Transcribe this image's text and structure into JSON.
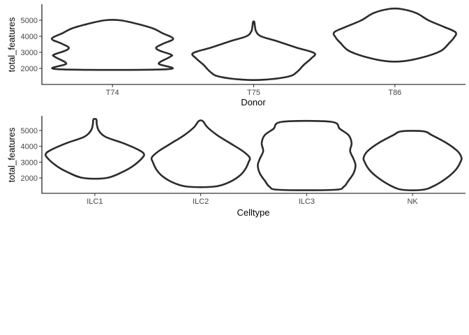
{
  "chart_data": [
    {
      "type": "violin",
      "xlabel": "Donor",
      "ylabel": "total_features",
      "ylim": [
        1050,
        5950
      ],
      "yticks": [
        2000,
        3000,
        4000,
        5000
      ],
      "categories": [
        "T74",
        "T75",
        "T86"
      ],
      "violins": [
        {
          "category": "T74",
          "profile": [
            [
              1950,
              0.9
            ],
            [
              2300,
              0.76
            ],
            [
              2700,
              0.94
            ],
            [
              2850,
              0.97
            ],
            [
              3100,
              0.78
            ],
            [
              3300,
              0.72
            ],
            [
              3550,
              0.84
            ],
            [
              3850,
              1.0
            ],
            [
              4200,
              0.82
            ],
            [
              4500,
              0.66
            ],
            [
              4800,
              0.38
            ],
            [
              5000,
              0.12
            ]
          ]
        },
        {
          "category": "T75",
          "profile": [
            [
              1300,
              0.19
            ],
            [
              1500,
              0.58
            ],
            [
              1800,
              0.72
            ],
            [
              2200,
              0.82
            ],
            [
              2600,
              0.94
            ],
            [
              2950,
              1.0
            ],
            [
              3300,
              0.7
            ],
            [
              3700,
              0.38
            ],
            [
              4000,
              0.12
            ],
            [
              4300,
              0.04
            ],
            [
              4650,
              0.02
            ],
            [
              4900,
              0.01
            ]
          ]
        },
        {
          "category": "T86",
          "profile": [
            [
              2450,
              0.14
            ],
            [
              2700,
              0.47
            ],
            [
              3100,
              0.76
            ],
            [
              3600,
              0.9
            ],
            [
              3900,
              0.97
            ],
            [
              4250,
              1.0
            ],
            [
              4600,
              0.8
            ],
            [
              5000,
              0.55
            ],
            [
              5450,
              0.35
            ],
            [
              5700,
              0.1
            ]
          ]
        }
      ]
    },
    {
      "type": "violin",
      "xlabel": "Celltype",
      "ylabel": "total_features",
      "ylim": [
        1050,
        5950
      ],
      "yticks": [
        2000,
        3000,
        4000,
        5000
      ],
      "categories": [
        "ILC1",
        "ILC2",
        "ILC3",
        "NK"
      ],
      "violins": [
        {
          "category": "ILC1",
          "profile": [
            [
              2000,
              0.24
            ],
            [
              2400,
              0.58
            ],
            [
              2800,
              0.8
            ],
            [
              3300,
              0.98
            ],
            [
              3550,
              1.0
            ],
            [
              3800,
              0.88
            ],
            [
              4200,
              0.58
            ],
            [
              4600,
              0.22
            ],
            [
              5000,
              0.08
            ],
            [
              5400,
              0.04
            ],
            [
              5700,
              0.03
            ]
          ]
        },
        {
          "category": "ILC2",
          "profile": [
            [
              1450,
              0.26
            ],
            [
              1700,
              0.56
            ],
            [
              2100,
              0.78
            ],
            [
              2500,
              0.9
            ],
            [
              3000,
              0.98
            ],
            [
              3300,
              1.0
            ],
            [
              3700,
              0.86
            ],
            [
              4200,
              0.6
            ],
            [
              4700,
              0.34
            ],
            [
              5200,
              0.14
            ],
            [
              5600,
              0.04
            ]
          ]
        },
        {
          "category": "ILC3",
          "profile": [
            [
              1250,
              0.56
            ],
            [
              1450,
              0.76
            ],
            [
              1800,
              0.85
            ],
            [
              2300,
              0.96
            ],
            [
              2800,
              1.0
            ],
            [
              3200,
              0.96
            ],
            [
              3700,
              0.89
            ],
            [
              4200,
              0.92
            ],
            [
              4700,
              0.86
            ],
            [
              5100,
              0.68
            ],
            [
              5550,
              0.5
            ]
          ]
        },
        {
          "category": "NK",
          "profile": [
            [
              1250,
              0.2
            ],
            [
              1500,
              0.44
            ],
            [
              2000,
              0.7
            ],
            [
              2500,
              0.88
            ],
            [
              3000,
              0.98
            ],
            [
              3300,
              1.0
            ],
            [
              3700,
              0.92
            ],
            [
              4200,
              0.7
            ],
            [
              4700,
              0.4
            ],
            [
              4950,
              0.22
            ]
          ]
        }
      ]
    }
  ]
}
